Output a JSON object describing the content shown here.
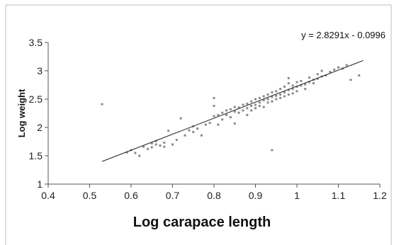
{
  "chart_data": {
    "type": "scatter",
    "title": "",
    "xlabel": "Log carapace length",
    "ylabel": "Log weight",
    "xlim": [
      0.4,
      1.2
    ],
    "ylim": [
      1,
      3.5
    ],
    "x_ticks": [
      "0.4",
      "0.5",
      "0.6",
      "0.7",
      "0.8",
      "0.9",
      "1",
      "1.1",
      "1.2"
    ],
    "y_ticks": [
      "1",
      "1.5",
      "2",
      "2.5",
      "3",
      "3.5"
    ],
    "grid": false,
    "legend": "none",
    "trendline": {
      "equation": "y = 2.8291x - 0.0996",
      "slope": 2.8291,
      "intercept": -0.0996,
      "x_range": [
        0.53,
        1.16
      ]
    },
    "colors": {
      "points": "#8a8a8a",
      "line": "#222222",
      "axes": "#555555",
      "frame": "#bdbdbd"
    },
    "points": [
      [
        0.53,
        2.41
      ],
      [
        0.59,
        1.56
      ],
      [
        0.6,
        1.6
      ],
      [
        0.61,
        1.55
      ],
      [
        0.62,
        1.5
      ],
      [
        0.63,
        1.66
      ],
      [
        0.64,
        1.62
      ],
      [
        0.65,
        1.72
      ],
      [
        0.65,
        1.65
      ],
      [
        0.66,
        1.76
      ],
      [
        0.66,
        1.7
      ],
      [
        0.67,
        1.68
      ],
      [
        0.68,
        1.73
      ],
      [
        0.68,
        1.66
      ],
      [
        0.69,
        1.94
      ],
      [
        0.7,
        1.7
      ],
      [
        0.71,
        1.78
      ],
      [
        0.72,
        2.16
      ],
      [
        0.73,
        1.86
      ],
      [
        0.74,
        1.95
      ],
      [
        0.75,
        1.92
      ],
      [
        0.75,
        2.02
      ],
      [
        0.76,
        1.98
      ],
      [
        0.77,
        1.86
      ],
      [
        0.78,
        2.05
      ],
      [
        0.79,
        2.08
      ],
      [
        0.8,
        2.52
      ],
      [
        0.8,
        2.38
      ],
      [
        0.8,
        2.2
      ],
      [
        0.81,
        2.05
      ],
      [
        0.81,
        2.22
      ],
      [
        0.82,
        2.26
      ],
      [
        0.82,
        2.14
      ],
      [
        0.83,
        2.3
      ],
      [
        0.83,
        2.22
      ],
      [
        0.84,
        2.18
      ],
      [
        0.84,
        2.32
      ],
      [
        0.85,
        2.28
      ],
      [
        0.85,
        2.36
      ],
      [
        0.85,
        2.07
      ],
      [
        0.86,
        2.26
      ],
      [
        0.86,
        2.35
      ],
      [
        0.87,
        2.3
      ],
      [
        0.87,
        2.4
      ],
      [
        0.88,
        2.34
      ],
      [
        0.88,
        2.42
      ],
      [
        0.88,
        2.22
      ],
      [
        0.89,
        2.38
      ],
      [
        0.89,
        2.46
      ],
      [
        0.89,
        2.3
      ],
      [
        0.9,
        2.4
      ],
      [
        0.9,
        2.5
      ],
      [
        0.9,
        2.34
      ],
      [
        0.91,
        2.44
      ],
      [
        0.91,
        2.52
      ],
      [
        0.91,
        2.38
      ],
      [
        0.92,
        2.48
      ],
      [
        0.92,
        2.55
      ],
      [
        0.92,
        2.36
      ],
      [
        0.93,
        2.5
      ],
      [
        0.93,
        2.58
      ],
      [
        0.93,
        2.44
      ],
      [
        0.94,
        2.54
      ],
      [
        0.94,
        2.62
      ],
      [
        0.94,
        2.46
      ],
      [
        0.94,
        1.6
      ],
      [
        0.95,
        2.56
      ],
      [
        0.95,
        2.64
      ],
      [
        0.95,
        2.5
      ],
      [
        0.96,
        2.58
      ],
      [
        0.96,
        2.68
      ],
      [
        0.96,
        2.52
      ],
      [
        0.97,
        2.62
      ],
      [
        0.97,
        2.72
      ],
      [
        0.97,
        2.55
      ],
      [
        0.98,
        2.66
      ],
      [
        0.98,
        2.78
      ],
      [
        0.98,
        2.58
      ],
      [
        0.98,
        2.87
      ],
      [
        0.99,
        2.68
      ],
      [
        0.99,
        2.74
      ],
      [
        0.99,
        2.6
      ],
      [
        1.0,
        2.72
      ],
      [
        1.0,
        2.8
      ],
      [
        1.0,
        2.64
      ],
      [
        1.01,
        2.74
      ],
      [
        1.01,
        2.82
      ],
      [
        1.02,
        2.76
      ],
      [
        1.02,
        2.68
      ],
      [
        1.03,
        2.8
      ],
      [
        1.03,
        2.88
      ],
      [
        1.04,
        2.84
      ],
      [
        1.04,
        2.78
      ],
      [
        1.05,
        2.86
      ],
      [
        1.05,
        2.94
      ],
      [
        1.06,
        2.9
      ],
      [
        1.06,
        3.0
      ],
      [
        1.07,
        2.92
      ],
      [
        1.08,
        2.98
      ],
      [
        1.09,
        3.02
      ],
      [
        1.1,
        3.06
      ],
      [
        1.11,
        3.04
      ],
      [
        1.12,
        3.1
      ],
      [
        1.13,
        2.84
      ],
      [
        1.15,
        2.92
      ]
    ]
  }
}
